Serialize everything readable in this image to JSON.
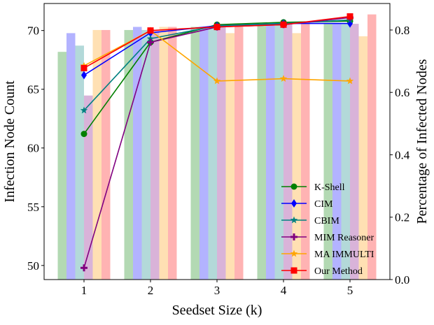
{
  "chart_data": {
    "type": "bar+line",
    "title": "",
    "xlabel": "Seedset Size (k)",
    "ylabel_left": "Infection Node Count",
    "ylabel_right": "Percentage of Infected Nodes",
    "categories": [
      "1",
      "2",
      "3",
      "4",
      "5"
    ],
    "ylim_left": [
      48.8,
      72.3
    ],
    "ylim_right": [
      0.0,
      0.885
    ],
    "yticks_left": [
      "50",
      "55",
      "60",
      "65",
      "70"
    ],
    "yticks_right": [
      "0.0",
      "0.2",
      "0.4",
      "0.6",
      "0.8"
    ],
    "grid": false,
    "legend_position": "lower-right",
    "bar_series": [
      {
        "color": "#b3d9b3",
        "values": [
          0.73,
          0.8,
          0.81,
          0.82,
          0.82
        ]
      },
      {
        "color": "#b3b3ff",
        "values": [
          0.79,
          0.81,
          0.81,
          0.82,
          0.82
        ]
      },
      {
        "color": "#b3d9d9",
        "values": [
          0.75,
          0.8,
          0.81,
          0.82,
          0.82
        ]
      },
      {
        "color": "#d9b3d9",
        "values": [
          0.59,
          0.8,
          0.81,
          0.82,
          0.82
        ]
      },
      {
        "color": "#ffe0b3",
        "values": [
          0.8,
          0.81,
          0.79,
          0.79,
          0.78
        ]
      },
      {
        "color": "#ffb3b3",
        "values": [
          0.8,
          0.81,
          0.81,
          0.82,
          0.85
        ]
      }
    ],
    "line_series": [
      {
        "name": "K-Shell",
        "color": "#008000",
        "marker": "circle",
        "values": [
          61.2,
          69.0,
          70.5,
          70.7,
          70.8
        ]
      },
      {
        "name": "CIM",
        "color": "#0000ff",
        "marker": "diamond",
        "values": [
          66.2,
          69.8,
          70.4,
          70.6,
          70.6
        ]
      },
      {
        "name": "CBIM",
        "color": "#008080",
        "marker": "star",
        "values": [
          63.2,
          69.3,
          70.4,
          70.6,
          70.9
        ]
      },
      {
        "name": "MIM Reasoner",
        "color": "#800080",
        "marker": "plus",
        "values": [
          49.8,
          69.0,
          70.3,
          70.5,
          71.1
        ]
      },
      {
        "name": "MA IMMULTI",
        "color": "#ffa500",
        "marker": "star",
        "values": [
          67.0,
          70.0,
          65.7,
          65.9,
          65.7
        ]
      },
      {
        "name": "Our Method",
        "color": "#ff0000",
        "marker": "square",
        "values": [
          66.8,
          70.0,
          70.3,
          70.5,
          71.2
        ]
      }
    ]
  }
}
